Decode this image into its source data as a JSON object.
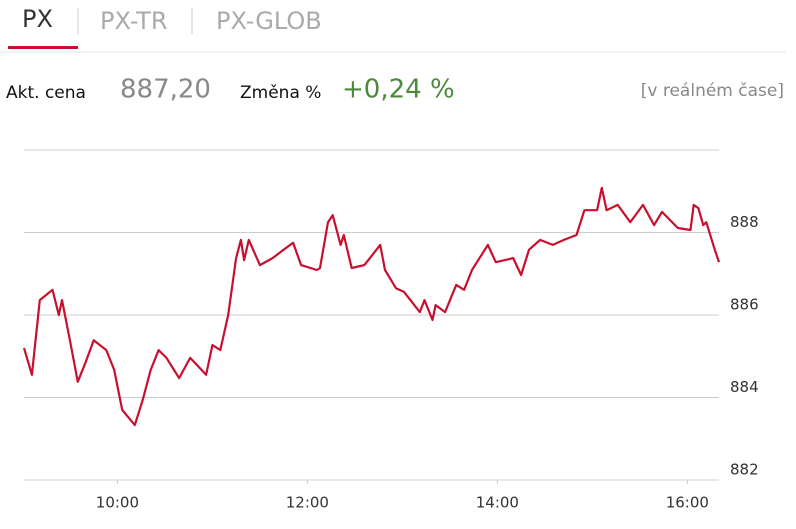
{
  "tabs": [
    "PX",
    "PX-TR",
    "PX-GLOB"
  ],
  "quote": {
    "price_label": "Akt. cena",
    "price": "887,20",
    "change_label": "Změna %",
    "change": "+0,24 %",
    "status": "[v reálném čase]"
  },
  "chart_data": {
    "type": "line",
    "x": [
      541,
      546,
      551,
      559,
      563,
      565,
      570,
      575,
      580,
      585,
      593,
      598,
      603,
      611,
      616,
      621,
      626,
      631,
      639,
      646,
      656,
      660,
      665,
      670,
      675,
      678,
      680,
      683,
      690,
      698,
      705,
      711,
      716,
      726,
      728,
      733,
      736,
      741,
      743,
      748,
      756,
      766,
      769,
      776,
      781,
      791,
      794,
      799,
      801,
      807,
      814,
      819,
      824,
      834,
      839,
      850,
      855,
      860,
      867,
      875,
      882,
      890,
      895,
      903,
      906,
      909,
      916,
      924,
      932,
      939,
      944,
      954,
      962,
      964,
      967,
      970,
      972,
      977,
      980
    ],
    "series": [
      {
        "name": "PX",
        "color": "#c8102e",
        "values": [
          885.2,
          884.55,
          886.36,
          886.61,
          886.0,
          886.36,
          885.39,
          884.38,
          884.86,
          885.39,
          885.15,
          884.67,
          883.7,
          883.33,
          883.94,
          884.67,
          885.15,
          884.96,
          884.47,
          884.96,
          884.55,
          885.27,
          885.15,
          886.0,
          887.38,
          887.82,
          887.33,
          887.82,
          887.21,
          887.38,
          887.58,
          887.75,
          887.21,
          887.09,
          887.14,
          888.25,
          888.42,
          887.7,
          887.94,
          887.14,
          887.21,
          887.7,
          887.09,
          886.65,
          886.56,
          886.07,
          886.36,
          885.88,
          886.24,
          886.07,
          886.73,
          886.61,
          887.09,
          887.7,
          887.28,
          887.38,
          886.97,
          887.58,
          887.82,
          887.7,
          887.82,
          887.94,
          888.54,
          888.54,
          889.08,
          888.54,
          888.67,
          888.25,
          888.67,
          888.18,
          888.5,
          888.11,
          888.06,
          888.67,
          888.59,
          888.18,
          888.25,
          887.62,
          887.28
        ]
      }
    ],
    "xlim": [
      541,
      980
    ],
    "xticks": [
      {
        "value": 600,
        "label": "10:00"
      },
      {
        "value": 720,
        "label": "12:00"
      },
      {
        "value": 840,
        "label": "14:00"
      },
      {
        "value": 960,
        "label": "16:00"
      }
    ],
    "ylim": [
      882,
      890
    ],
    "yticks": [
      882,
      884,
      886,
      888
    ],
    "grid": true
  }
}
